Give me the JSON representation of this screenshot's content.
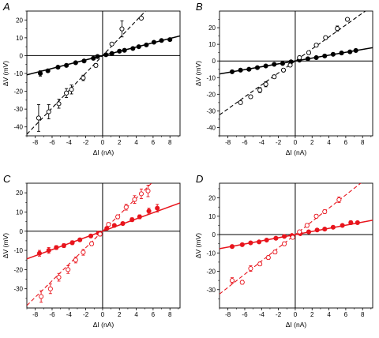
{
  "chart_data": [
    {
      "type": "scatter",
      "panel": "A",
      "color": "#000000",
      "xlabel": "ΔI (nA)",
      "ylabel": "ΔV (mV)",
      "xlim": [
        -9,
        9.2
      ],
      "ylim": [
        -45,
        25
      ],
      "xticks": [
        -8,
        -6,
        -4,
        -2,
        0,
        2,
        4,
        6,
        8
      ],
      "yticks": [
        -40,
        -30,
        -20,
        -10,
        0,
        10,
        20
      ],
      "grid": false,
      "series": [
        {
          "style": "filled-solid-line",
          "fit_slope": 1.2,
          "x": [
            -7.4,
            -6.5,
            -5.3,
            -4.3,
            -3.2,
            -2.2,
            -1.1,
            -0.6,
            0.4,
            1.1,
            2.0,
            2.6,
            3.6,
            4.3,
            5.2,
            6.1,
            7.0,
            8.0
          ],
          "y": [
            -10.0,
            -8.5,
            -6.5,
            -5.5,
            -4.0,
            -3.0,
            -1.5,
            -0.5,
            0.5,
            1.2,
            2.5,
            3.0,
            4.0,
            5.0,
            6.0,
            7.5,
            8.5,
            9.0
          ],
          "err": [
            1.5,
            0.8,
            0.6,
            0.5,
            0.4,
            0.4,
            0.3,
            0.3,
            0.3,
            0.3,
            0.3,
            0.3,
            0.3,
            0.3,
            0.3,
            0.3,
            0.3,
            0.4
          ]
        },
        {
          "style": "open-dashed-line",
          "fit_slope": 4.9,
          "x": [
            -7.6,
            -6.4,
            -5.2,
            -4.3,
            -3.7,
            -2.3,
            -0.8,
            1.1,
            2.3,
            4.6
          ],
          "y": [
            -35.0,
            -31.5,
            -27.0,
            -21.0,
            -19.0,
            -12.5,
            -5.5,
            6.5,
            15.0,
            21.0
          ],
          "err": [
            7.5,
            4.0,
            2.5,
            2.5,
            2.5,
            1.5,
            1.0,
            0.8,
            4.5,
            0
          ]
        }
      ]
    },
    {
      "type": "scatter",
      "panel": "B",
      "color": "#000000",
      "xlabel": "ΔI (nA)",
      "ylabel": "ΔV (mV)",
      "xlim": [
        -9,
        9.2
      ],
      "ylim": [
        -45,
        30
      ],
      "xticks": [
        -8,
        -6,
        -4,
        -2,
        0,
        2,
        4,
        6,
        8
      ],
      "yticks": [
        -40,
        -30,
        -20,
        -10,
        0,
        10,
        20
      ],
      "grid": false,
      "series": [
        {
          "style": "filled-solid-line",
          "fit_slope": 0.87,
          "x": [
            -7.5,
            -6.5,
            -5.5,
            -4.5,
            -3.5,
            -2.5,
            -1.5,
            -0.5,
            0.5,
            1.5,
            2.5,
            3.5,
            4.5,
            5.5,
            6.5,
            7.2
          ],
          "y": [
            -6.5,
            -5.5,
            -5.0,
            -4.0,
            -3.0,
            -2.0,
            -1.5,
            -0.5,
            0.5,
            1.3,
            2.0,
            3.0,
            4.0,
            4.8,
            5.5,
            6.3
          ],
          "err": [
            0.3,
            0.3,
            0.3,
            0.3,
            0.3,
            0.3,
            0.3,
            0.3,
            0.3,
            0.3,
            0.3,
            0.3,
            0.3,
            0.3,
            0.3,
            0.3
          ]
        },
        {
          "style": "open-dashed-line",
          "fit_slope": 3.6,
          "x": [
            -6.5,
            -5.3,
            -4.2,
            -3.5,
            -2.5,
            -1.4,
            -0.6,
            0.5,
            1.6,
            2.5,
            3.6,
            5.0,
            6.2
          ],
          "y": [
            -25.0,
            -21.5,
            -17.5,
            -14.0,
            -9.5,
            -5.5,
            -2.5,
            2.0,
            5.0,
            9.5,
            14.0,
            19.5,
            25.0
          ],
          "err": [
            1.0,
            1.0,
            1.5,
            1.5,
            1.0,
            1.0,
            1.0,
            0.5,
            1.0,
            1.0,
            1.0,
            1.5,
            0.5
          ]
        }
      ]
    },
    {
      "type": "scatter",
      "panel": "C",
      "color": "#e8141c",
      "xlabel": "ΔI (nA)",
      "ylabel": "ΔV (mV)",
      "xlim": [
        -9,
        9.2
      ],
      "ylim": [
        -40,
        25
      ],
      "xticks": [
        -8,
        -6,
        -4,
        -2,
        0,
        2,
        4,
        6,
        8
      ],
      "yticks": [
        -30,
        -20,
        -10,
        0,
        10,
        20
      ],
      "grid": false,
      "series": [
        {
          "style": "filled-solid-line",
          "fit_slope": 1.6,
          "x": [
            -7.5,
            -6.4,
            -5.5,
            -4.6,
            -3.6,
            -2.7,
            -1.4,
            -0.5,
            0.5,
            1.4,
            2.4,
            3.5,
            4.4,
            5.5,
            6.5
          ],
          "y": [
            -11.5,
            -10.0,
            -8.5,
            -7.5,
            -6.0,
            -4.5,
            -2.5,
            -1.0,
            1.5,
            3.0,
            4.0,
            6.0,
            7.5,
            10.5,
            12.0
          ],
          "err": [
            1.5,
            1.5,
            1.0,
            1.0,
            1.0,
            0.8,
            0.8,
            0.5,
            0.5,
            0.8,
            0.8,
            1.0,
            1.0,
            1.5,
            2.0
          ]
        },
        {
          "style": "open-dashed-line",
          "fit_slope": 4.3,
          "x": [
            -7.3,
            -6.2,
            -5.2,
            -4.1,
            -3.2,
            -2.3,
            -1.3,
            -0.3,
            0.7,
            1.8,
            2.8,
            3.8,
            4.6,
            5.4
          ],
          "y": [
            -34.0,
            -30.0,
            -24.0,
            -20.0,
            -15.0,
            -11.0,
            -6.5,
            -1.5,
            3.5,
            7.5,
            12.5,
            16.5,
            19.5,
            21.0
          ],
          "err": [
            3.0,
            2.5,
            2.0,
            2.0,
            1.5,
            1.5,
            1.0,
            1.0,
            1.0,
            1.0,
            1.5,
            2.0,
            2.5,
            3.0
          ]
        }
      ]
    },
    {
      "type": "scatter",
      "panel": "D",
      "color": "#e8141c",
      "xlabel": "ΔI (nA)",
      "ylabel": "ΔV (mV)",
      "xlim": [
        -9,
        9.2
      ],
      "ylim": [
        -40,
        28
      ],
      "xticks": [
        -8,
        -6,
        -4,
        -2,
        0,
        2,
        4,
        6,
        8
      ],
      "yticks": [
        -30,
        -20,
        -10,
        0,
        10,
        20
      ],
      "grid": false,
      "series": [
        {
          "style": "filled-solid-line",
          "fit_slope": 0.85,
          "x": [
            -7.5,
            -6.3,
            -5.3,
            -4.3,
            -3.4,
            -2.3,
            -1.3,
            -0.4,
            0.6,
            1.6,
            2.6,
            3.5,
            4.5,
            5.6,
            6.6,
            7.4
          ],
          "y": [
            -6.5,
            -5.5,
            -4.5,
            -4.0,
            -3.0,
            -2.0,
            -1.0,
            -0.5,
            0.5,
            1.5,
            2.5,
            3.0,
            4.0,
            5.0,
            6.5,
            6.5
          ],
          "err": [
            0.5,
            0.5,
            0.5,
            0.5,
            0.5,
            0.5,
            0.5,
            0.3,
            0.3,
            0.5,
            0.5,
            0.5,
            0.5,
            0.5,
            1.0,
            0.5
          ]
        },
        {
          "style": "open-dashed-line",
          "fit_slope": 3.6,
          "x": [
            -7.5,
            -6.3,
            -5.3,
            -4.2,
            -3.2,
            -2.4,
            -1.3,
            -0.3,
            0.5,
            1.4,
            2.5,
            3.5,
            5.2
          ],
          "y": [
            -25.0,
            -26.0,
            -18.5,
            -16.0,
            -12.5,
            -9.5,
            -5.0,
            -1.5,
            1.5,
            5.0,
            10.0,
            12.5,
            19.0
          ],
          "err": [
            1.5,
            1.0,
            1.5,
            1.0,
            1.0,
            1.0,
            1.0,
            0.5,
            0.5,
            1.0,
            1.0,
            1.0,
            1.5
          ]
        }
      ]
    }
  ]
}
